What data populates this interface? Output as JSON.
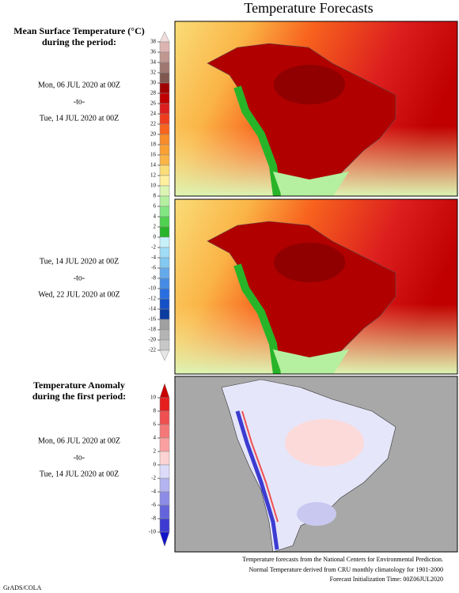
{
  "title": "Temperature Forecasts",
  "panels": [
    {
      "heading": [
        "Mean Surface Temperature (°C)",
        "during the period:"
      ],
      "start": "Mon, 06 JUL 2020 at 00Z",
      "separator": "-to-",
      "end": "Tue, 14 JUL 2020 at 00Z"
    },
    {
      "start": "Tue, 14 JUL 2020 at 00Z",
      "separator": "-to-",
      "end": "Wed, 22 JUL 2020 at 00Z"
    },
    {
      "heading": [
        "Temperature Anomaly",
        "during the first period:"
      ],
      "start": "Mon, 06 JUL 2020 at 00Z",
      "separator": "-to-",
      "end": "Tue, 14 JUL 2020 at 00Z"
    }
  ],
  "colorbars": [
    {
      "ticks": [
        38,
        36,
        34,
        32,
        30,
        28,
        26,
        24,
        22,
        20,
        18,
        16,
        14,
        12,
        10,
        8,
        6,
        4,
        2,
        0,
        -2,
        -4,
        -6,
        -8,
        -10,
        -12,
        -14,
        -16,
        -18,
        -20,
        -22
      ],
      "colors": [
        "#f0dcdc",
        "#dcb4b0",
        "#c09890",
        "#a07870",
        "#805850",
        "#a00000",
        "#c00000",
        "#dc1e1e",
        "#f03c1e",
        "#f8641e",
        "#f88c28",
        "#faa032",
        "#fab446",
        "#fadc78",
        "#fff0a0",
        "#dcf5b4",
        "#b4f0a0",
        "#82e682",
        "#50d250",
        "#28b428",
        "#c8f0fa",
        "#a0dcf5",
        "#82c8f0",
        "#64aaeb",
        "#468ce6",
        "#286ee0",
        "#1450c8",
        "#0a3ca0",
        "#a0a0a0",
        "#b4b4b4",
        "#c8c8c8",
        "#e6e6e6"
      ]
    },
    {
      "ticks": [
        10,
        8,
        6,
        4,
        2,
        0,
        -2,
        -4,
        -6,
        -8,
        -10
      ],
      "colors": [
        "#c80000",
        "#e61e1e",
        "#f05050",
        "#f57878",
        "#faa0a0",
        "#fcd2d2",
        "#dcdcfa",
        "#b4b4f0",
        "#8c8ce6",
        "#6464dc",
        "#3c3cd2",
        "#1414c8"
      ]
    }
  ],
  "footer": [
    "Temperature forecasts from the National Centers for Environmental Prediction.",
    "Normal Temperature derived from CRU monthly climatology for 1901-2000",
    "Forecast Initialization Time: 00Z06JUL2020"
  ],
  "credit": "GrADS/COLA"
}
